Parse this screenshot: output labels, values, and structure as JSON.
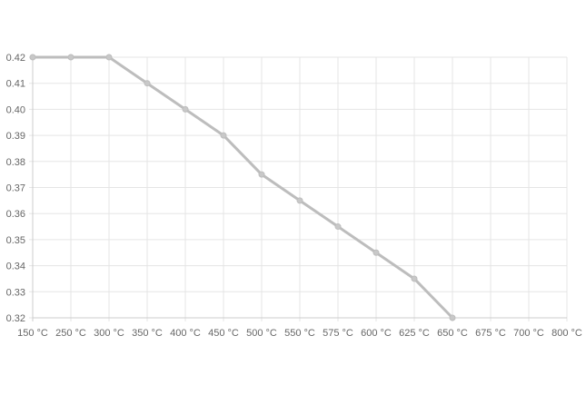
{
  "chart_data": {
    "type": "line",
    "categories": [
      "150 °C",
      "250 °C",
      "300 °C",
      "350 °C",
      "400 °C",
      "450 °C",
      "500 °C",
      "550 °C",
      "575 °C",
      "600 °C",
      "625 °C",
      "650 °C",
      "675 °C",
      "700 °C",
      "800 °C"
    ],
    "series": [
      {
        "values": [
          0.42,
          0.42,
          0.42,
          0.41,
          0.4,
          0.39,
          0.375,
          0.365,
          0.355,
          0.345,
          0.335,
          0.32,
          null,
          null,
          null
        ]
      }
    ],
    "yticks": [
      "0.42",
      "0.41",
      "0.40",
      "0.39",
      "0.38",
      "0.37",
      "0.36",
      "0.35",
      "0.34",
      "0.33",
      "0.32"
    ],
    "ylim": [
      0.32,
      0.42
    ],
    "grid": true,
    "legend": "none",
    "colors": {
      "line": "#bdbdbd",
      "grid": "#e5e5e5",
      "axis": "#cccccc"
    }
  }
}
